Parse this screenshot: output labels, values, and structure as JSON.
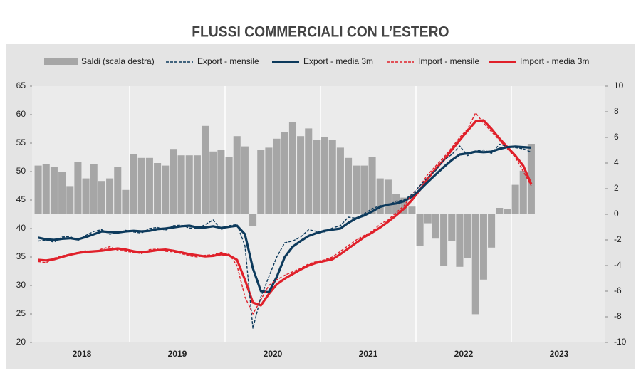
{
  "chart_data": {
    "type": "bar-line",
    "title": "FLUSSI COMMERCIALI CON L’ESTERO",
    "x_labels": [
      "2018",
      "2019",
      "2020",
      "2021",
      "2022",
      "2023"
    ],
    "ylim": [
      20,
      65
    ],
    "yticks": [
      20,
      25,
      30,
      35,
      40,
      45,
      50,
      55,
      60,
      65
    ],
    "y2lim": [
      -10,
      10
    ],
    "y2ticks": [
      -10,
      -8,
      -6,
      -4,
      -2,
      0,
      2,
      4,
      6,
      8,
      10
    ],
    "grid": true,
    "series": [
      {
        "name": "Saldi (scala destra)",
        "type": "bar",
        "axis": "y2",
        "color": "#a6a6a6",
        "values": [
          3.8,
          3.9,
          3.7,
          3.3,
          2.2,
          4.1,
          2.8,
          3.9,
          2.6,
          2.8,
          3.7,
          1.9,
          4.7,
          4.4,
          4.4,
          4.0,
          3.8,
          5.1,
          4.6,
          4.6,
          4.6,
          6.9,
          4.9,
          5.0,
          4.5,
          6.1,
          5.3,
          -0.9,
          5.0,
          5.2,
          5.9,
          6.4,
          7.2,
          6.1,
          6.7,
          5.8,
          6.0,
          5.8,
          5.2,
          4.4,
          3.8,
          3.8,
          4.5,
          2.8,
          2.7,
          1.6,
          1.3,
          0.6,
          -2.5,
          -0.7,
          -1.9,
          -4.0,
          -2.1,
          -4.1,
          -3.4,
          -7.8,
          -5.1,
          -2.6,
          0.5,
          0.4,
          2.3,
          3.4,
          5.5
        ]
      },
      {
        "name": "Export - mensile",
        "type": "line",
        "dashed": true,
        "color": "#0d3a5c",
        "values": [
          37.8,
          38.0,
          37.6,
          38.5,
          38.6,
          37.9,
          38.8,
          39.5,
          39.8,
          39.0,
          39.2,
          39.7,
          39.4,
          39.2,
          40.0,
          40.2,
          39.7,
          40.5,
          40.6,
          40.1,
          40.0,
          40.7,
          41.5,
          39.8,
          40.5,
          40.7,
          37,
          22.5,
          28,
          31.5,
          35,
          37.5,
          37.8,
          38.5,
          39.8,
          39.5,
          39.4,
          40.1,
          40.5,
          42.0,
          41.8,
          42.6,
          43.5,
          44.0,
          44.1,
          44.8,
          45.0,
          46.0,
          47.5,
          49,
          50.2,
          52,
          53,
          54.5,
          52.8,
          53.6,
          53.8,
          53.2,
          54.8,
          54.4,
          54.2,
          54.0,
          53.4
        ]
      },
      {
        "name": "Export - media 3m",
        "type": "line",
        "dashed": false,
        "color": "#0d3a5c",
        "values": [
          38.4,
          38.1,
          38.0,
          38.2,
          38.3,
          38.1,
          38.5,
          39.0,
          39.5,
          39.4,
          39.3,
          39.5,
          39.6,
          39.5,
          39.6,
          39.9,
          40.0,
          40.2,
          40.4,
          40.5,
          40.2,
          40.2,
          40.4,
          40.1,
          40.3,
          40.5,
          39,
          33,
          29,
          28.8,
          31.5,
          35,
          36.8,
          37.8,
          38.7,
          39.2,
          39.6,
          39.8,
          40.0,
          41.0,
          41.8,
          42.3,
          43,
          43.8,
          44.2,
          44.4,
          44.8,
          45.6,
          46.8,
          48.2,
          49.5,
          50.8,
          52,
          53,
          53.2,
          53.5,
          53.4,
          53.5,
          54,
          54.3,
          54.4,
          54.3,
          54.2
        ]
      },
      {
        "name": "Import - mensile",
        "type": "line",
        "dashed": true,
        "color": "#e0202a",
        "values": [
          34.2,
          34.0,
          34.8,
          35.2,
          35.5,
          35.8,
          36.1,
          35.9,
          36.4,
          36.8,
          36.2,
          36.0,
          35.8,
          35.6,
          36.3,
          36.4,
          36.0,
          35.9,
          35.6,
          35.2,
          35.0,
          35.3,
          35.4,
          35.8,
          35.5,
          33.5,
          28,
          25,
          27.5,
          30,
          31,
          31.8,
          32.4,
          33,
          33.8,
          34.2,
          34.5,
          35,
          36,
          37,
          38,
          38.8,
          39.5,
          40.8,
          41.5,
          42.8,
          44,
          46,
          47.5,
          49.5,
          51,
          52.5,
          54.2,
          56,
          57.5,
          60.3,
          58.5,
          57,
          55.5,
          54,
          52.5,
          50,
          47.5
        ]
      },
      {
        "name": "Import - media 3m",
        "type": "line",
        "dashed": false,
        "color": "#e0202a",
        "values": [
          34.5,
          34.4,
          34.6,
          35.0,
          35.4,
          35.7,
          35.9,
          36.0,
          36.1,
          36.3,
          36.5,
          36.3,
          36.0,
          35.8,
          36.0,
          36.2,
          36.3,
          36.1,
          35.8,
          35.5,
          35.3,
          35.1,
          35.2,
          35.5,
          35.3,
          34.5,
          31,
          27,
          26.5,
          28.5,
          30.2,
          31.2,
          32,
          32.8,
          33.5,
          34,
          34.3,
          34.6,
          35.5,
          36.5,
          37.5,
          38.5,
          39.3,
          40.2,
          41.2,
          42.3,
          43.5,
          45,
          46.8,
          48.8,
          50.5,
          52,
          53.8,
          55.5,
          57.2,
          58.8,
          59,
          57.5,
          55.8,
          54.3,
          52.8,
          51,
          47.8
        ]
      }
    ]
  }
}
